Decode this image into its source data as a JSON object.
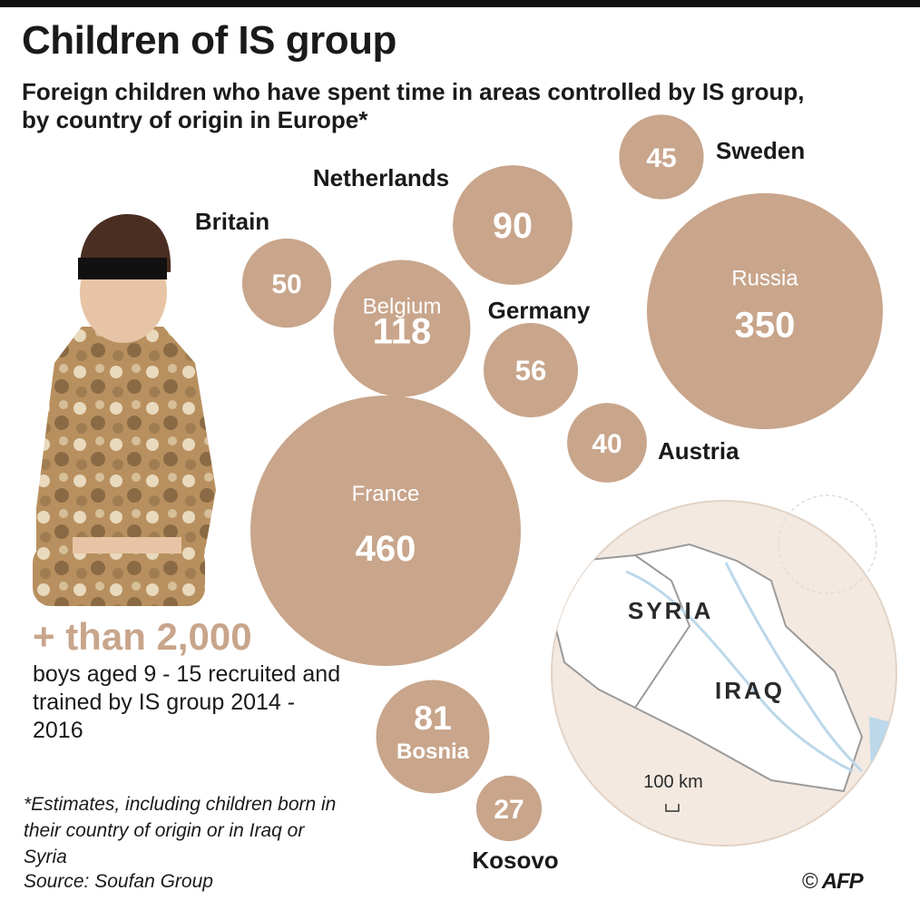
{
  "title": "Children of IS group",
  "subtitle": "Foreign children who have spent time in areas controlled by IS group, by country of origin in Europe*",
  "stat": {
    "headline": "+ than 2,000",
    "text": "boys aged 9 - 15 recruited and trained by IS group 2014 - 2016"
  },
  "footnote": "*Estimates, including children born in their country of origin or in Iraq or Syria",
  "source": "Source: Soufan Group",
  "credit": {
    "symbol": "©",
    "agency": "AFP"
  },
  "map": {
    "labels": [
      "SYRIA",
      "IRAQ"
    ],
    "scale": "100 km"
  },
  "colors": {
    "bubble": "#c8a58b",
    "map_bg": "#f3e9e1",
    "map_land": "#ffffff",
    "water": "#bcd8ea",
    "text": "#1a1a1a"
  },
  "chart_data": {
    "type": "bubble",
    "value_label": "Foreign children",
    "series": [
      {
        "name": "France",
        "value": 460
      },
      {
        "name": "Russia",
        "value": 350
      },
      {
        "name": "Belgium",
        "value": 118
      },
      {
        "name": "Netherlands",
        "value": 90
      },
      {
        "name": "Bosnia",
        "value": 81
      },
      {
        "name": "Germany",
        "value": 56
      },
      {
        "name": "Britain",
        "value": 50
      },
      {
        "name": "Sweden",
        "value": 45
      },
      {
        "name": "Austria",
        "value": 40
      },
      {
        "name": "Kosovo",
        "value": 27
      }
    ]
  }
}
